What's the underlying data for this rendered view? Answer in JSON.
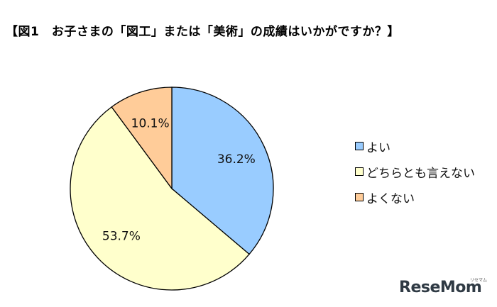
{
  "title": "【図1　お子さまの「図工」または「美術」の成績はいかがですか？】",
  "chart_data": {
    "type": "pie",
    "categories": [
      "よい",
      "どちらとも言えない",
      "よくない"
    ],
    "values": [
      36.2,
      53.7,
      10.1
    ],
    "labels": [
      "36.2%",
      "53.7%",
      "10.1%"
    ],
    "colors": [
      "#99ccff",
      "#ffffcc",
      "#ffcc99"
    ],
    "legend": "right"
  },
  "watermark": {
    "brand": "ReseMom",
    "small": "リセマム"
  }
}
